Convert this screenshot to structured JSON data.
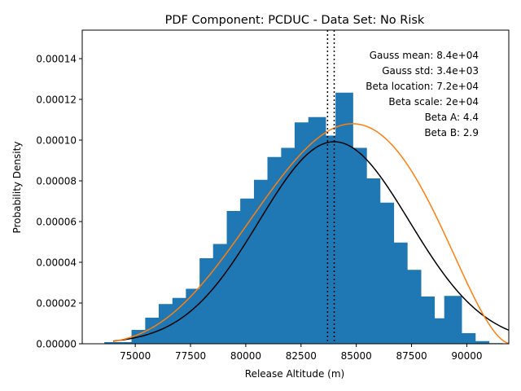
{
  "chart_data": {
    "type": "bar",
    "title": "PDF Component: PCDUC - Data Set: No Risk",
    "xlabel": "Release Altitude (m)",
    "ylabel": "Probability Density",
    "xlim": [
      72600,
      91900
    ],
    "ylim": [
      0,
      0.000154
    ],
    "xticks": [
      75000,
      77500,
      80000,
      82500,
      85000,
      87500,
      90000
    ],
    "xtick_labels": [
      "75000",
      "77500",
      "80000",
      "82500",
      "85000",
      "87500",
      "90000"
    ],
    "yticks": [
      0,
      2e-05,
      4e-05,
      6e-05,
      8e-05,
      0.0001,
      0.00012,
      0.00014
    ],
    "ytick_labels": [
      "0.00000",
      "0.00002",
      "0.00004",
      "0.00006",
      "0.00008",
      "0.00010",
      "0.00012",
      "0.00014"
    ],
    "grid": false,
    "bar_color": "#1f77b4",
    "bar_width": 1000,
    "histogram": {
      "bin_centers": [
        74000,
        74620,
        75230,
        75850,
        76460,
        77080,
        77690,
        78310,
        78920,
        79540,
        80150,
        80770,
        81380,
        82000,
        82610,
        83230,
        83850,
        84460,
        85080,
        85690,
        86310,
        86920,
        87540,
        88150,
        88770,
        89380,
        90000,
        90620,
        91230
      ],
      "values": [
        8e-07,
        8e-07,
        6.8e-06,
        1.28e-05,
        1.95e-05,
        2.25e-05,
        2.7e-05,
        4.2e-05,
        4.9e-05,
        6.52e-05,
        7.13e-05,
        8.05e-05,
        9.17e-05,
        9.62e-05,
        0.0001087,
        0.0001113,
        0.0001022,
        0.0001233,
        9.62e-05,
        8.12e-05,
        6.93e-05,
        4.97e-05,
        3.63e-05,
        2.32e-05,
        1.25e-05,
        2.35e-05,
        5.2e-06,
        1.3e-06,
        3e-07
      ]
    },
    "series": [
      {
        "color": "#000000",
        "type": "gauss",
        "mean": 84000,
        "std": 3400,
        "scale": 9.92e-05
      },
      {
        "color": "#ff7f0e",
        "type": "beta",
        "loc": 72000,
        "beta_scale": 20000,
        "a": 4.4,
        "b": 2.9,
        "x_end": 92300
      }
    ],
    "vlines": [
      {
        "x": 83700,
        "style": "dotted",
        "color": "#000000"
      },
      {
        "x": 84000,
        "style": "dotted",
        "color": "#000000"
      }
    ],
    "annotations": [
      "Gauss mean: 8.4e+04",
      "Gauss std: 3.4e+03",
      "Beta location: 7.2e+04",
      "Beta scale: 2e+04",
      "Beta A: 4.4",
      "Beta B: 2.9"
    ]
  }
}
